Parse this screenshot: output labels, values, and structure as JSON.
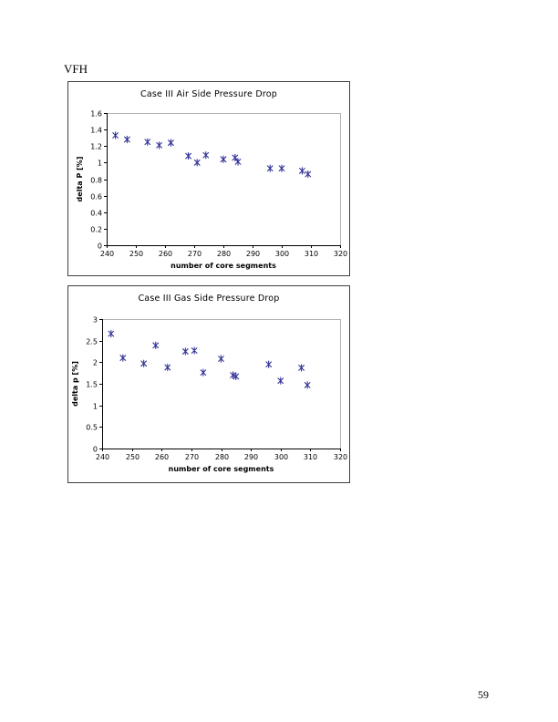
{
  "page": {
    "header": "VFH",
    "page_number": "59"
  },
  "chart_data": [
    {
      "type": "scatter",
      "title": "Case III Air Side Pressure Drop",
      "xlabel": "number of core segments",
      "ylabel": "delta P [%]",
      "xlim": [
        240,
        320
      ],
      "xtick_step": 10,
      "ylim": [
        0,
        1.6
      ],
      "ytick_step": 0.2,
      "grid": false,
      "legend": "none",
      "marker": "star-x",
      "marker_color": "#333399",
      "points": [
        [
          243,
          1.33
        ],
        [
          247,
          1.28
        ],
        [
          254,
          1.25
        ],
        [
          258,
          1.21
        ],
        [
          262,
          1.24
        ],
        [
          268,
          1.08
        ],
        [
          271,
          1.0
        ],
        [
          274,
          1.09
        ],
        [
          280,
          1.04
        ],
        [
          284,
          1.06
        ],
        [
          285,
          1.01
        ],
        [
          296,
          0.93
        ],
        [
          300,
          0.93
        ],
        [
          307,
          0.9
        ],
        [
          309,
          0.86
        ]
      ]
    },
    {
      "type": "scatter",
      "title": "Case III Gas Side Pressure Drop",
      "xlabel": "number of core segments",
      "ylabel": "delta p [%]",
      "xlim": [
        240,
        320
      ],
      "xtick_step": 10,
      "ylim": [
        0,
        3
      ],
      "ytick_step": 0.5,
      "grid": false,
      "legend": "none",
      "marker": "star-x",
      "marker_color": "#333399",
      "points": [
        [
          243,
          2.66
        ],
        [
          247,
          2.1
        ],
        [
          254,
          1.97
        ],
        [
          258,
          2.39
        ],
        [
          262,
          1.88
        ],
        [
          268,
          2.25
        ],
        [
          271,
          2.27
        ],
        [
          274,
          1.76
        ],
        [
          280,
          2.08
        ],
        [
          284,
          1.7
        ],
        [
          285,
          1.67
        ],
        [
          296,
          1.95
        ],
        [
          300,
          1.57
        ],
        [
          307,
          1.87
        ],
        [
          309,
          1.47
        ]
      ]
    }
  ],
  "style": {
    "axis_color": "#000000",
    "plot_border_color": "#b3b3b3",
    "text_color": "#000000"
  }
}
